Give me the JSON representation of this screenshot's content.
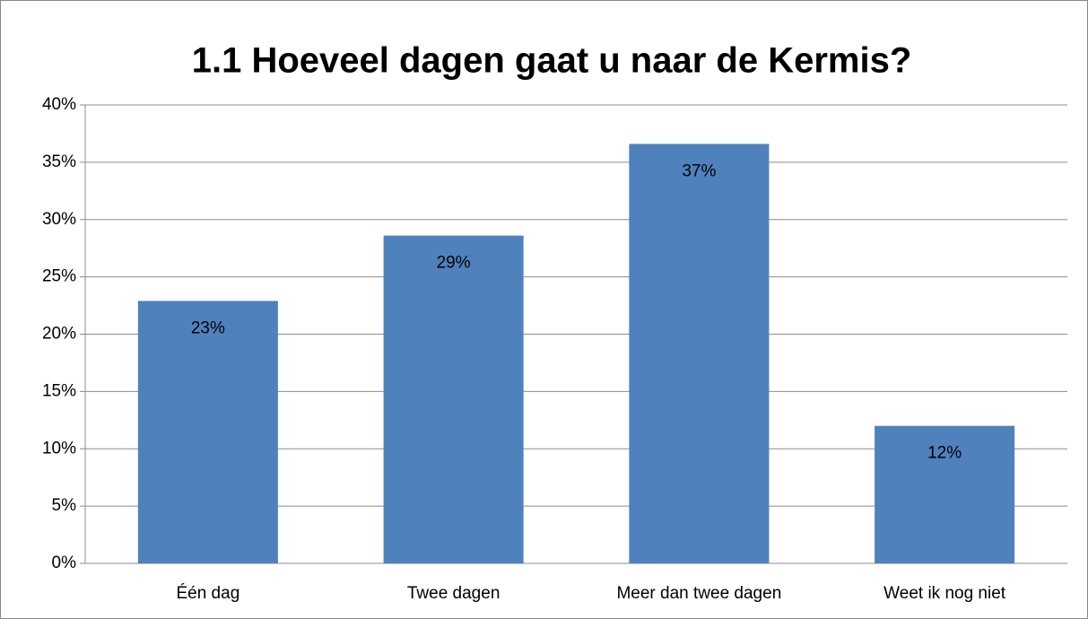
{
  "chart_data": {
    "type": "bar",
    "title": "1.1 Hoeveel dagen gaat u naar de Kermis?",
    "categories": [
      "Één dag",
      "Twee dagen",
      "Meer dan twee dagen",
      "Weet ik nog niet"
    ],
    "values": [
      22.9,
      28.6,
      36.6,
      12.0
    ],
    "value_labels": [
      "23%",
      "29%",
      "37%",
      "12%"
    ],
    "color": "#4f81bd",
    "ylim": [
      0,
      40
    ],
    "yticks": [
      {
        "value": 0,
        "label": "0%"
      },
      {
        "value": 5,
        "label": "5%"
      },
      {
        "value": 10,
        "label": "10%"
      },
      {
        "value": 15,
        "label": "15%"
      },
      {
        "value": 20,
        "label": "20%"
      },
      {
        "value": 25,
        "label": "25%"
      },
      {
        "value": 30,
        "label": "30%"
      },
      {
        "value": 35,
        "label": "35%"
      },
      {
        "value": 40,
        "label": "40%"
      }
    ],
    "grid": true
  }
}
